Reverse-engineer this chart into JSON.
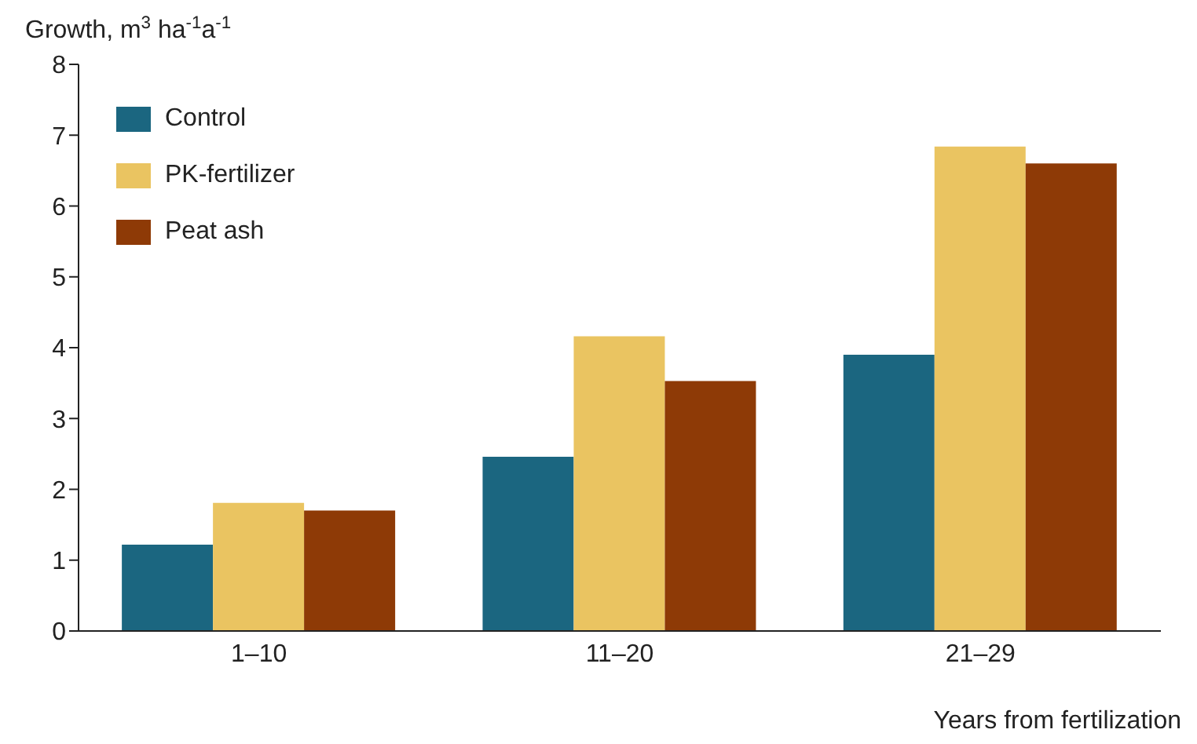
{
  "chart_data": {
    "type": "bar",
    "ylabel": "Growth, m$^{3}$ ha$^{-1}$a$^{-1}$",
    "xlabel": "Years from fertilization",
    "categories": [
      "1–10",
      "11–20",
      "21–29"
    ],
    "series": [
      {
        "name": "Control",
        "color": "#1b6680",
        "values": [
          1.22,
          2.46,
          3.9
        ]
      },
      {
        "name": "PK-fertilizer",
        "color": "#eac461",
        "values": [
          1.81,
          4.16,
          6.84
        ]
      },
      {
        "name": "Peat ash",
        "color": "#8e3a06",
        "values": [
          1.7,
          3.53,
          6.6
        ]
      }
    ],
    "ylim": [
      0,
      8
    ],
    "yticks": [
      0,
      1,
      2,
      3,
      4,
      5,
      6,
      7,
      8
    ],
    "grid": false,
    "legend": "top left"
  }
}
